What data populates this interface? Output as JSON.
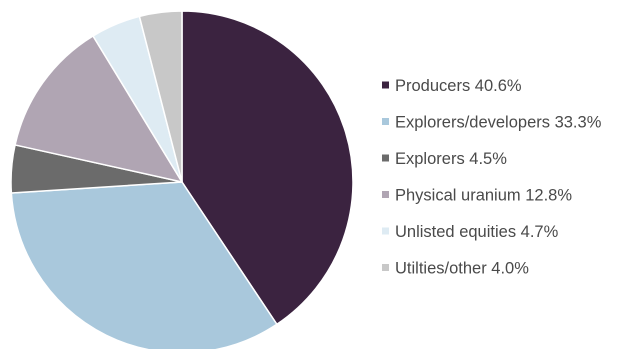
{
  "chart_data": {
    "type": "pie",
    "title": "",
    "start_angle_deg": 0,
    "direction": "clockwise",
    "legend_position": "right",
    "slices": [
      {
        "label": "Producers",
        "value": 40.6,
        "display": "40.6%",
        "color": "#3b2340"
      },
      {
        "label": "Explorers/developers",
        "value": 33.3,
        "display": "33.3%",
        "color": "#a9c8dc"
      },
      {
        "label": "Explorers",
        "value": 4.5,
        "display": "4.5%",
        "color": "#6b6b6b"
      },
      {
        "label": "Physical uranium",
        "value": 12.8,
        "display": "12.8%",
        "color": "#b0a5b3"
      },
      {
        "label": "Unlisted equities",
        "value": 4.7,
        "display": "4.7%",
        "color": "#deebf3"
      },
      {
        "label": "Utilties/other",
        "value": 4.0,
        "display": "4.0%",
        "color": "#c8c8c8"
      }
    ]
  }
}
